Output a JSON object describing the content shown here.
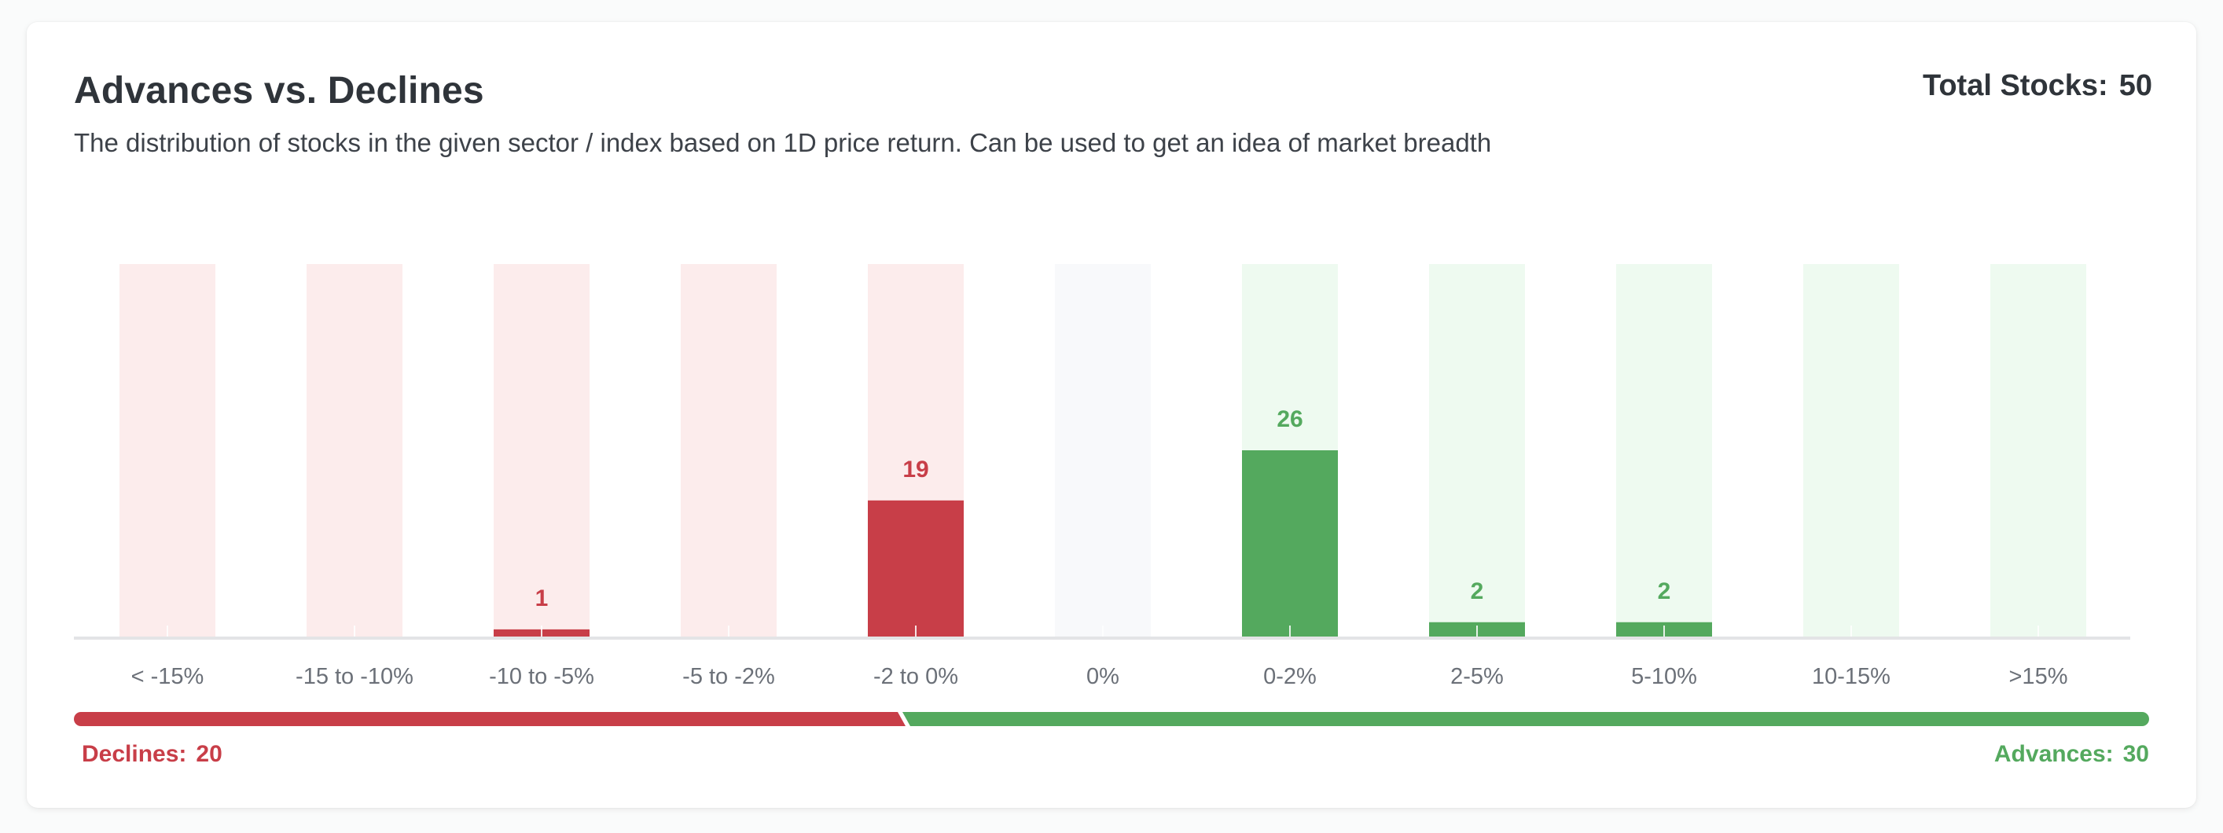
{
  "header": {
    "title": "Advances vs. Declines",
    "subtitle": "The distribution of stocks in the given sector / index based on 1D price return. Can be used to get an idea of market breadth",
    "total_label": "Total Stocks:",
    "total_value": "50"
  },
  "colors": {
    "decline": "#c83e48",
    "decline_bg": "#fcecec",
    "neutral_bg": "#f8f9fb",
    "advance": "#54a95e",
    "advance_bg": "#eefaf0",
    "axis": "#e3e4e6"
  },
  "chart_data": {
    "type": "bar",
    "categories": [
      "< -15%",
      "-15 to -10%",
      "-10 to -5%",
      "-5 to -2%",
      "-2 to 0%",
      "0%",
      "0-2%",
      "2-5%",
      "5-10%",
      "10-15%",
      ">15%"
    ],
    "values": [
      0,
      0,
      1,
      0,
      19,
      0,
      26,
      2,
      2,
      0,
      0
    ],
    "groups": [
      "decline",
      "decline",
      "decline",
      "decline",
      "decline",
      "neutral",
      "advance",
      "advance",
      "advance",
      "advance",
      "advance"
    ],
    "title": "Advances vs. Declines",
    "xlabel": "",
    "ylabel": "",
    "ylim": [
      0,
      52
    ],
    "grid": false
  },
  "summary": {
    "declines_label": "Declines:",
    "declines_value": "20",
    "advances_label": "Advances:",
    "advances_value": "30"
  }
}
